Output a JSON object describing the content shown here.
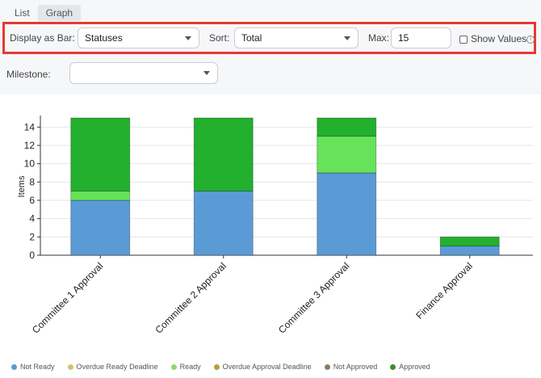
{
  "tabs": [
    {
      "label": "List"
    },
    {
      "label": "Graph"
    }
  ],
  "controls": {
    "display_as_bar_label": "Display as Bar:",
    "display_as_bar_value": "Statuses",
    "sort_label": "Sort:",
    "sort_value": "Total",
    "max_label": "Max:",
    "max_value": "15",
    "show_values_label": "Show Values",
    "show_values_checked": false,
    "info_icon": "info-icon"
  },
  "milestone": {
    "label": "Milestone:",
    "value": ""
  },
  "chart_data": {
    "type": "bar",
    "stacked": true,
    "ylabel": "Items",
    "xlabel": "",
    "ylim": [
      0,
      15
    ],
    "yticks": [
      0,
      2,
      4,
      6,
      8,
      10,
      12,
      14
    ],
    "grid": true,
    "categories": [
      "Committee 1 Approval",
      "Committee 2 Approval",
      "Committee 3 Approval",
      "Finance Approval"
    ],
    "series": [
      {
        "name": "Not Ready",
        "color": "#5b9bd5",
        "values": [
          6,
          7,
          9,
          1
        ]
      },
      {
        "name": "Overdue Ready Deadline",
        "color": "#d4c36a",
        "values": [
          0,
          0,
          0,
          0
        ]
      },
      {
        "name": "Ready",
        "color": "#66e35a",
        "values": [
          1,
          0,
          4,
          0
        ]
      },
      {
        "name": "Overdue Approval Deadline",
        "color": "#b3a13a",
        "values": [
          0,
          0,
          0,
          0
        ]
      },
      {
        "name": "Not Approved",
        "color": "#8d7b6a",
        "values": [
          0,
          0,
          0,
          0
        ]
      },
      {
        "name": "Approved",
        "color": "#22b02e",
        "values": [
          8,
          8,
          2,
          1
        ]
      }
    ],
    "legend_position": "bottom",
    "legend_colors": [
      "#5b9bd5",
      "#d4c36a",
      "#93d86a",
      "#b3a13a",
      "#8d7b6a",
      "#3d8f2e"
    ]
  }
}
